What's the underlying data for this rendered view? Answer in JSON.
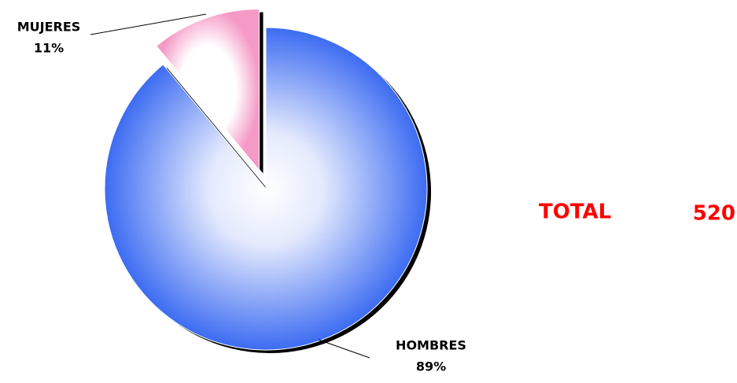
{
  "chart_data": {
    "type": "pie",
    "categories": [
      "HOMBRES",
      "MUJERES"
    ],
    "values": [
      89,
      11
    ],
    "value_labels": [
      "89%",
      "11%"
    ],
    "colors": [
      "#3d6cf2",
      "#f59ac6"
    ],
    "exploded": [
      false,
      true
    ],
    "total_label": "TOTAL",
    "total": 520
  }
}
